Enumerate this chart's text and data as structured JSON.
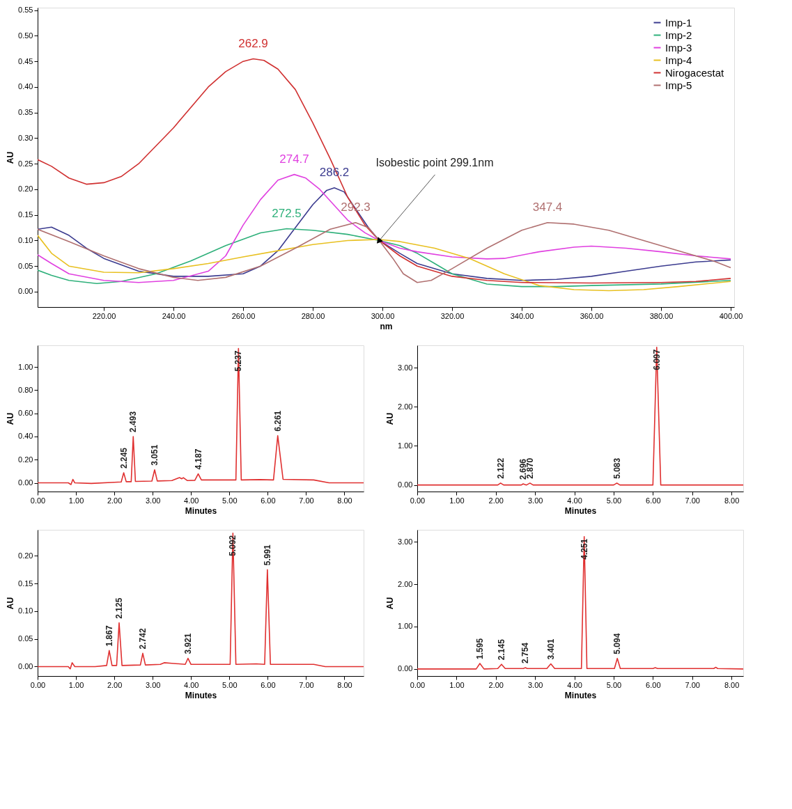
{
  "chart_data": [
    {
      "type": "line",
      "xlabel": "nm",
      "ylabel": "AU",
      "legend": "top right",
      "grid": false,
      "xlim": [
        201,
        401
      ],
      "ylim": [
        -0.03,
        0.555
      ],
      "xticks": [
        {
          "value": 220,
          "label": "220.00"
        },
        {
          "value": 240,
          "label": "240.00"
        },
        {
          "value": 260,
          "label": "260.00"
        },
        {
          "value": 280,
          "label": "280.00"
        },
        {
          "value": 300,
          "label": "300.00"
        },
        {
          "value": 320,
          "label": "320.00"
        },
        {
          "value": 340,
          "label": "340.00"
        },
        {
          "value": 360,
          "label": "360.00"
        },
        {
          "value": 380,
          "label": "380.00"
        },
        {
          "value": 400,
          "label": "400.00"
        }
      ],
      "yticks": [
        {
          "value": 0,
          "label": "0.00"
        },
        {
          "value": 0.05,
          "label": "0.05"
        },
        {
          "value": 0.1,
          "label": "0.10"
        },
        {
          "value": 0.15,
          "label": "0.15"
        },
        {
          "value": 0.2,
          "label": "0.20"
        },
        {
          "value": 0.25,
          "label": "0.25"
        },
        {
          "value": 0.3,
          "label": "0.30"
        },
        {
          "value": 0.35,
          "label": "0.35"
        },
        {
          "value": 0.4,
          "label": "0.40"
        },
        {
          "value": 0.45,
          "label": "0.45"
        },
        {
          "value": 0.5,
          "label": "0.50"
        },
        {
          "value": 0.55,
          "label": "0.55"
        }
      ],
      "series": [
        {
          "name": "Imp-1",
          "color": "#3b3b8f",
          "x": [
            201,
            205,
            210,
            215,
            220,
            230,
            240,
            250,
            260,
            265,
            270,
            275,
            280,
            284,
            286.2,
            289,
            292,
            296,
            299.1,
            305,
            310,
            320,
            330,
            340,
            350,
            360,
            370,
            380,
            390,
            400
          ],
          "values": [
            0.122,
            0.126,
            0.11,
            0.085,
            0.065,
            0.04,
            0.03,
            0.03,
            0.035,
            0.05,
            0.08,
            0.125,
            0.17,
            0.198,
            0.203,
            0.195,
            0.165,
            0.125,
            0.1,
            0.075,
            0.055,
            0.035,
            0.026,
            0.022,
            0.024,
            0.03,
            0.04,
            0.05,
            0.058,
            0.062
          ]
        },
        {
          "name": "Imp-2",
          "color": "#2eb07a",
          "x": [
            201,
            205,
            210,
            218,
            225,
            235,
            245,
            255,
            265,
            272.5,
            280,
            290,
            299.1,
            305,
            310,
            315,
            320,
            330,
            340,
            350,
            360,
            380,
            400
          ],
          "values": [
            0.042,
            0.032,
            0.022,
            0.016,
            0.02,
            0.035,
            0.06,
            0.09,
            0.115,
            0.123,
            0.12,
            0.112,
            0.1,
            0.09,
            0.075,
            0.055,
            0.035,
            0.015,
            0.01,
            0.01,
            0.012,
            0.015,
            0.022
          ]
        },
        {
          "name": "Imp-3",
          "color": "#e040e0",
          "x": [
            201,
            205,
            210,
            220,
            230,
            240,
            250,
            255,
            260,
            265,
            270,
            274.7,
            278,
            282,
            286,
            290,
            295,
            299.1,
            305,
            310,
            320,
            330,
            335,
            345,
            355,
            360,
            370,
            380,
            390,
            400
          ],
          "values": [
            0.072,
            0.055,
            0.035,
            0.022,
            0.018,
            0.022,
            0.04,
            0.07,
            0.13,
            0.18,
            0.218,
            0.229,
            0.222,
            0.2,
            0.17,
            0.14,
            0.115,
            0.1,
            0.085,
            0.078,
            0.068,
            0.064,
            0.065,
            0.078,
            0.087,
            0.089,
            0.085,
            0.078,
            0.07,
            0.064
          ]
        },
        {
          "name": "Imp-4",
          "color": "#e8c020",
          "x": [
            201,
            205,
            210,
            220,
            230,
            240,
            250,
            260,
            270,
            280,
            290,
            299.1,
            305,
            315,
            325,
            335,
            345,
            355,
            365,
            375,
            385,
            400
          ],
          "values": [
            0.11,
            0.075,
            0.05,
            0.038,
            0.037,
            0.045,
            0.055,
            0.068,
            0.08,
            0.092,
            0.1,
            0.102,
            0.098,
            0.085,
            0.065,
            0.035,
            0.012,
            0.004,
            0.002,
            0.004,
            0.01,
            0.02
          ]
        },
        {
          "name": "Nirogacestat",
          "color": "#d03030",
          "x": [
            201,
            205,
            210,
            215,
            220,
            225,
            230,
            240,
            250,
            255,
            260,
            262.9,
            266,
            270,
            275,
            280,
            285,
            290,
            295,
            299.1,
            305,
            310,
            320,
            330,
            340,
            360,
            380,
            390,
            400
          ],
          "values": [
            0.258,
            0.245,
            0.222,
            0.21,
            0.213,
            0.225,
            0.25,
            0.32,
            0.4,
            0.43,
            0.45,
            0.455,
            0.452,
            0.435,
            0.395,
            0.33,
            0.26,
            0.185,
            0.13,
            0.1,
            0.07,
            0.05,
            0.03,
            0.022,
            0.018,
            0.017,
            0.018,
            0.02,
            0.026
          ]
        },
        {
          "name": "Imp-5",
          "color": "#b07070",
          "x": [
            201,
            210,
            220,
            230,
            240,
            247,
            255,
            265,
            275,
            285,
            292.3,
            296,
            299.1,
            303,
            306,
            310,
            314,
            320,
            330,
            340,
            347.4,
            355,
            365,
            375,
            385,
            395,
            400
          ],
          "values": [
            0.122,
            0.098,
            0.07,
            0.045,
            0.028,
            0.022,
            0.028,
            0.05,
            0.085,
            0.122,
            0.135,
            0.125,
            0.1,
            0.065,
            0.035,
            0.018,
            0.022,
            0.045,
            0.085,
            0.12,
            0.135,
            0.132,
            0.12,
            0.1,
            0.08,
            0.06,
            0.047
          ]
        }
      ],
      "annotations": [
        {
          "text": "262.9",
          "x": 262.9,
          "y": 0.455
        },
        {
          "text": "274.7",
          "x": 274.7,
          "y": 0.229
        },
        {
          "text": "286.2",
          "x": 286.2,
          "y": 0.203
        },
        {
          "text": "272.5",
          "x": 272.5,
          "y": 0.123
        },
        {
          "text": "292.3",
          "x": 292.3,
          "y": 0.135
        },
        {
          "text": "347.4",
          "x": 347.4,
          "y": 0.135
        },
        {
          "text": "Isobestic point 299.1nm",
          "x": 299.1,
          "y": 0.1
        }
      ]
    },
    {
      "type": "line",
      "xlabel": "Minutes",
      "ylabel": "AU",
      "grid": false,
      "xlim": [
        0,
        8.5
      ],
      "ylim": [
        -0.075,
        1.187
      ],
      "xticks": [
        {
          "value": 0,
          "label": "0.00"
        },
        {
          "value": 1,
          "label": "1.00"
        },
        {
          "value": 2,
          "label": "2.00"
        },
        {
          "value": 3,
          "label": "3.00"
        },
        {
          "value": 4,
          "label": "4.00"
        },
        {
          "value": 5,
          "label": "5.00"
        },
        {
          "value": 6,
          "label": "6.00"
        },
        {
          "value": 7,
          "label": "7.00"
        },
        {
          "value": 8,
          "label": "8.00"
        }
      ],
      "yticks": [
        {
          "value": 0,
          "label": "0.00"
        },
        {
          "value": 0.2,
          "label": "0.20"
        },
        {
          "value": 0.4,
          "label": "0.40"
        },
        {
          "value": 0.6,
          "label": "0.60"
        },
        {
          "value": 0.8,
          "label": "0.80"
        },
        {
          "value": 1,
          "label": "1.00"
        }
      ],
      "series": [
        {
          "color": "#e03030",
          "x": [
            0,
            0.8,
            0.87,
            0.92,
            0.97,
            1.4,
            2.0,
            2.18,
            2.245,
            2.31,
            2.44,
            2.493,
            2.55,
            2.98,
            3.051,
            3.12,
            3.5,
            3.7,
            3.76,
            3.8,
            3.9,
            4.1,
            4.187,
            4.27,
            5.17,
            5.237,
            5.31,
            5.8,
            6.15,
            6.261,
            6.4,
            7.2,
            7.6,
            8.5
          ],
          "values": [
            0,
            0,
            -0.015,
            0.03,
            0,
            -0.005,
            0.005,
            0.008,
            0.087,
            0.01,
            0.01,
            0.4,
            0.012,
            0.015,
            0.113,
            0.016,
            0.02,
            0.045,
            0.035,
            0.045,
            0.02,
            0.022,
            0.078,
            0.025,
            0.025,
            1.16,
            0.025,
            0.028,
            0.025,
            0.407,
            0.03,
            0.025,
            0,
            0
          ]
        }
      ],
      "annotations": [
        {
          "text": "2.245",
          "x": 2.245,
          "y": 0.087
        },
        {
          "text": "2.493",
          "x": 2.493,
          "y": 0.4
        },
        {
          "text": "3.051",
          "x": 3.051,
          "y": 0.113
        },
        {
          "text": "4.187",
          "x": 4.187,
          "y": 0.078
        },
        {
          "text": "5.237",
          "x": 5.237,
          "y": 1.16
        },
        {
          "text": "6.261",
          "x": 6.261,
          "y": 0.407
        }
      ]
    },
    {
      "type": "line",
      "xlabel": "Minutes",
      "ylabel": "AU",
      "grid": false,
      "xlim": [
        0,
        8.3
      ],
      "ylim": [
        -0.166,
        3.57
      ],
      "xticks": [
        {
          "value": 0,
          "label": "0.00"
        },
        {
          "value": 1,
          "label": "1.00"
        },
        {
          "value": 2,
          "label": "2.00"
        },
        {
          "value": 3,
          "label": "3.00"
        },
        {
          "value": 4,
          "label": "4.00"
        },
        {
          "value": 5,
          "label": "5.00"
        },
        {
          "value": 6,
          "label": "6.00"
        },
        {
          "value": 7,
          "label": "7.00"
        },
        {
          "value": 8,
          "label": "8.00"
        }
      ],
      "yticks": [
        {
          "value": 0,
          "label": "0.00"
        },
        {
          "value": 1,
          "label": "1.00"
        },
        {
          "value": 2,
          "label": "2.00"
        },
        {
          "value": 3,
          "label": "3.00"
        }
      ],
      "series": [
        {
          "color": "#e03030",
          "x": [
            0,
            2.05,
            2.122,
            2.2,
            2.65,
            2.696,
            2.78,
            2.87,
            2.95,
            5.0,
            5.083,
            5.16,
            6.0,
            6.097,
            6.2,
            8.3
          ],
          "values": [
            0,
            0,
            0.05,
            0,
            0,
            0.03,
            0,
            0.05,
            0,
            0,
            0.05,
            0,
            0,
            3.52,
            0,
            0
          ]
        }
      ],
      "annotations": [
        {
          "text": "2.122",
          "x": 2.122,
          "y": 0.05
        },
        {
          "text": "2.696",
          "x": 2.696,
          "y": 0.03
        },
        {
          "text": "2.870",
          "x": 2.87,
          "y": 0.05
        },
        {
          "text": "5.083",
          "x": 5.083,
          "y": 0.05
        },
        {
          "text": "6.097",
          "x": 6.097,
          "y": 3.52
        }
      ]
    },
    {
      "type": "line",
      "xlabel": "Minutes",
      "ylabel": "AU",
      "grid": false,
      "xlim": [
        0,
        8.5
      ],
      "ylim": [
        -0.017,
        0.247
      ],
      "xticks": [
        {
          "value": 0,
          "label": "0.00"
        },
        {
          "value": 1,
          "label": "1.00"
        },
        {
          "value": 2,
          "label": "2.00"
        },
        {
          "value": 3,
          "label": "3.00"
        },
        {
          "value": 4,
          "label": "4.00"
        },
        {
          "value": 5,
          "label": "5.00"
        },
        {
          "value": 6,
          "label": "6.00"
        },
        {
          "value": 7,
          "label": "7.00"
        },
        {
          "value": 8,
          "label": "8.00"
        }
      ],
      "yticks": [
        {
          "value": 0,
          "label": "0.00"
        },
        {
          "value": 0.05,
          "label": "0.05"
        },
        {
          "value": 0.1,
          "label": "0.10"
        },
        {
          "value": 0.15,
          "label": "0.15"
        },
        {
          "value": 0.2,
          "label": "0.20"
        }
      ],
      "series": [
        {
          "color": "#e03030",
          "x": [
            0,
            0.8,
            0.85,
            0.9,
            0.97,
            1.5,
            1.8,
            1.867,
            1.94,
            2.06,
            2.125,
            2.2,
            2.68,
            2.742,
            2.81,
            3.2,
            3.3,
            3.5,
            3.85,
            3.921,
            4.0,
            5.02,
            5.092,
            5.17,
            5.7,
            5.92,
            5.991,
            6.07,
            7.2,
            7.5,
            8.5
          ],
          "values": [
            0,
            0,
            -0.004,
            0.007,
            0,
            0,
            0.002,
            0.029,
            0.002,
            0.002,
            0.079,
            0.002,
            0.003,
            0.024,
            0.003,
            0.004,
            0.007,
            0.006,
            0.004,
            0.015,
            0.004,
            0.004,
            0.241,
            0.004,
            0.005,
            0.004,
            0.175,
            0.004,
            0.004,
            0,
            0
          ]
        }
      ],
      "annotations": [
        {
          "text": "1.867",
          "x": 1.867,
          "y": 0.029
        },
        {
          "text": "2.125",
          "x": 2.125,
          "y": 0.079
        },
        {
          "text": "2.742",
          "x": 2.742,
          "y": 0.024
        },
        {
          "text": "3.921",
          "x": 3.921,
          "y": 0.015
        },
        {
          "text": "5.092",
          "x": 5.092,
          "y": 0.241
        },
        {
          "text": "5.991",
          "x": 5.991,
          "y": 0.175
        }
      ]
    },
    {
      "type": "line",
      "xlabel": "Minutes",
      "ylabel": "AU",
      "grid": false,
      "xlim": [
        0,
        8.3
      ],
      "ylim": [
        -0.166,
        3.28
      ],
      "xticks": [
        {
          "value": 0,
          "label": "0.00"
        },
        {
          "value": 1,
          "label": "1.00"
        },
        {
          "value": 2,
          "label": "2.00"
        },
        {
          "value": 3,
          "label": "3.00"
        },
        {
          "value": 4,
          "label": "4.00"
        },
        {
          "value": 5,
          "label": "5.00"
        },
        {
          "value": 6,
          "label": "6.00"
        },
        {
          "value": 7,
          "label": "7.00"
        },
        {
          "value": 8,
          "label": "8.00"
        }
      ],
      "yticks": [
        {
          "value": 0,
          "label": "0.00"
        },
        {
          "value": 1,
          "label": "1.00"
        },
        {
          "value": 2,
          "label": "2.00"
        },
        {
          "value": 3,
          "label": "3.00"
        }
      ],
      "series": [
        {
          "color": "#e03030",
          "x": [
            0,
            1.5,
            1.595,
            1.7,
            2.05,
            2.145,
            2.24,
            2.7,
            2.754,
            2.8,
            3.3,
            3.401,
            3.5,
            4.18,
            4.251,
            4.32,
            5.02,
            5.094,
            5.17,
            6.0,
            6.06,
            6.12,
            7.55,
            7.6,
            7.65,
            8.3
          ],
          "values": [
            0,
            0,
            0.13,
            0,
            0.01,
            0.11,
            0.01,
            0.01,
            0.03,
            0.01,
            0.01,
            0.12,
            0.01,
            0.01,
            3.12,
            0.01,
            0.01,
            0.25,
            0.01,
            0.01,
            0.03,
            0.01,
            0.01,
            0.04,
            0.01,
            0
          ]
        }
      ],
      "annotations": [
        {
          "text": "1.595",
          "x": 1.595,
          "y": 0.13
        },
        {
          "text": "2.145",
          "x": 2.145,
          "y": 0.11
        },
        {
          "text": "2.754",
          "x": 2.754,
          "y": 0.03
        },
        {
          "text": "3.401",
          "x": 3.401,
          "y": 0.12
        },
        {
          "text": "4.251",
          "x": 4.251,
          "y": 3.12
        },
        {
          "text": "5.094",
          "x": 5.094,
          "y": 0.25
        }
      ]
    }
  ]
}
